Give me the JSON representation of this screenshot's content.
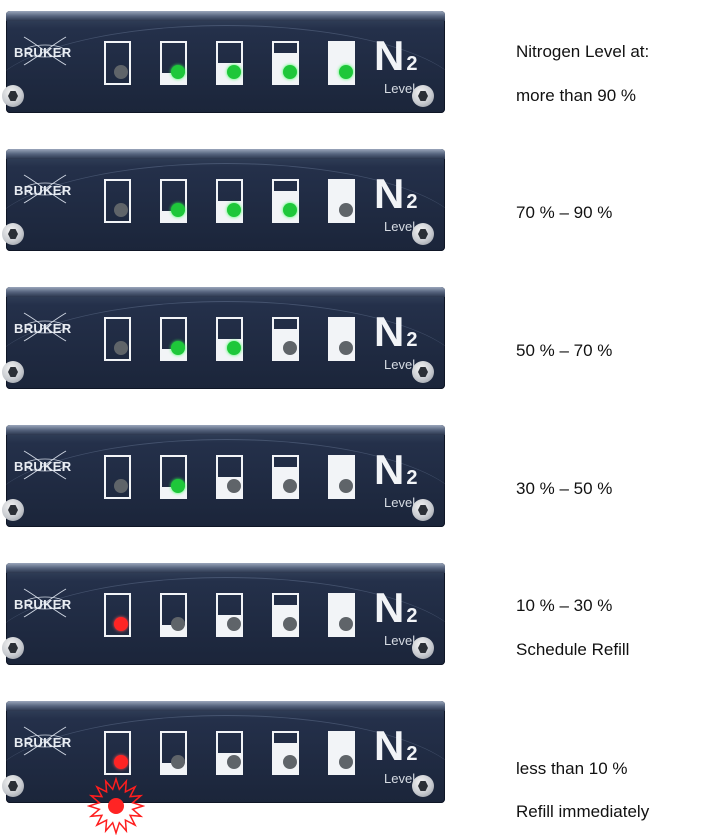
{
  "diagram": {
    "panel_logo": "BRUKER",
    "panel_symbol": "N",
    "panel_symbol_sub": "2",
    "panel_level_label": "Level",
    "gauge_fill_fractions": [
      0,
      0.25,
      0.5,
      0.75,
      1.0
    ],
    "colors": {
      "led_on_green": "#1ec73a",
      "led_on_red": "#ff2424",
      "led_off": "#5f6469",
      "panel_background": "#1b253a"
    },
    "rows": [
      {
        "leds": [
          "off",
          "green",
          "green",
          "green",
          "green"
        ],
        "label_lines": [
          "Nitrogen Level at:",
          "more than 90 %"
        ],
        "burst": false
      },
      {
        "leds": [
          "off",
          "green",
          "green",
          "green",
          "off"
        ],
        "label_lines": [
          "70 % – 90 %"
        ],
        "burst": false
      },
      {
        "leds": [
          "off",
          "green",
          "green",
          "off",
          "off"
        ],
        "label_lines": [
          "50 % – 70 %"
        ],
        "burst": false
      },
      {
        "leds": [
          "off",
          "green",
          "off",
          "off",
          "off"
        ],
        "label_lines": [
          "30 % – 50 %"
        ],
        "burst": false
      },
      {
        "leds": [
          "red",
          "off",
          "off",
          "off",
          "off"
        ],
        "label_lines": [
          "10 % – 30 %",
          "Schedule Refill"
        ],
        "burst": false
      },
      {
        "leds": [
          "red",
          "off",
          "off",
          "off",
          "off"
        ],
        "label_lines": [
          "less than 10 %",
          "Refill immediately"
        ],
        "burst": true
      }
    ]
  }
}
